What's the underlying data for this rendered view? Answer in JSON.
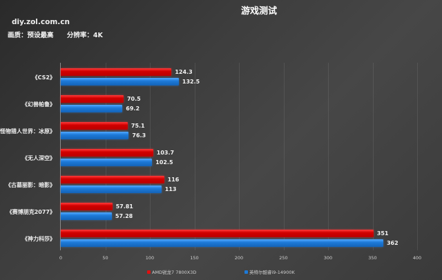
{
  "header": {
    "title": "游戏测试",
    "site": "diy.zol.com.cn",
    "quality": "画质：预设最高",
    "resolution": "分辨率：4K"
  },
  "colors": {
    "amd": "#d10000",
    "intel": "#1d7ad9"
  },
  "chart_data": {
    "type": "bar",
    "orientation": "horizontal",
    "title": "游戏测试",
    "subtitle": "画质：预设最高 分辨率：4K",
    "categories": [
      "《CS2》",
      "《幻兽帕鲁》",
      "《怪物猎人世界：冰原》",
      "《无人深空》",
      "《古墓丽影：暗影》",
      "《赛博朋克2077》",
      "《神力科莎》"
    ],
    "series": [
      {
        "name": "AMD锐龙7 7800X3D",
        "color": "#d10000",
        "values": [
          124.3,
          70.5,
          75.1,
          103.7,
          116,
          57.81,
          351
        ]
      },
      {
        "name": "英特尔酷睿i9-14900K",
        "color": "#1d7ad9",
        "values": [
          132.5,
          69.2,
          76.3,
          102.5,
          113,
          57.28,
          362
        ]
      }
    ],
    "value_labels": {
      "amd": [
        "124.3",
        "70.5",
        "75.1",
        "103.7",
        "116",
        "57.81",
        "351"
      ],
      "intel": [
        "132.5",
        "69.2",
        "76.3",
        "102.5",
        "113",
        "57.28",
        "362"
      ]
    },
    "xlabel": "",
    "ylabel": "",
    "xlim": [
      0,
      400
    ],
    "xticks": [
      "0",
      "50",
      "100",
      "150",
      "200",
      "250",
      "300",
      "350",
      "400"
    ],
    "grid": true,
    "legend_position": "bottom"
  }
}
